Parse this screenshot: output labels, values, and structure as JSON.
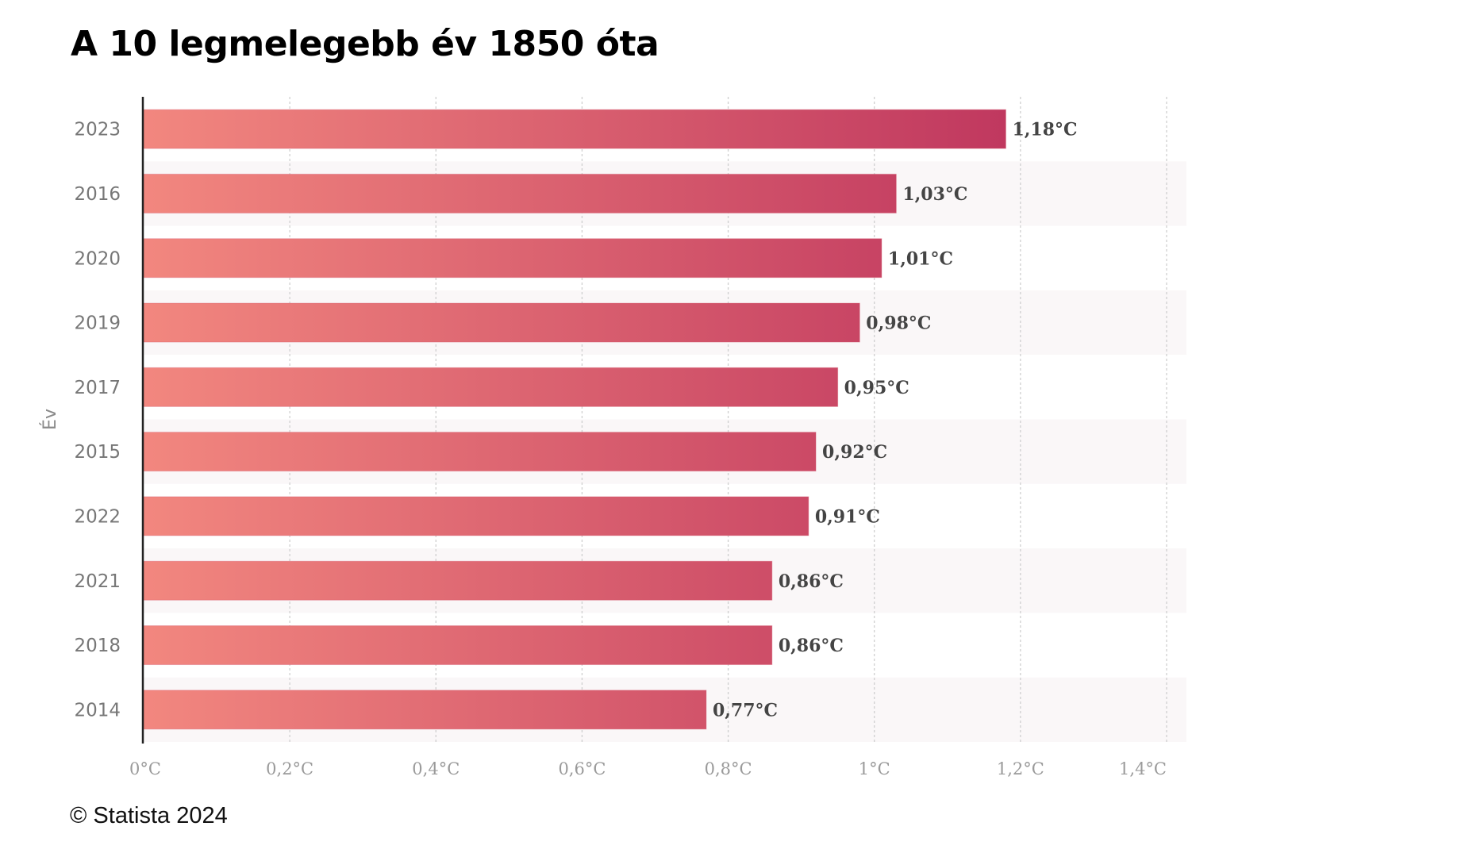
{
  "header": {
    "title": "A 10 legmelegebb év 1850 óta"
  },
  "footer": {
    "copyright": "© Statista 2024"
  },
  "colors": {
    "bar_start": "#f2877f",
    "bar_end": "#c0385f",
    "row_alt": "#faf7f8",
    "grid": "#cfcfcf",
    "axis": "#222222"
  },
  "chart_data": {
    "type": "bar",
    "orientation": "horizontal",
    "title": "A 10 legmelegebb év 1850 óta",
    "xlabel": "",
    "ylabel": "Év",
    "categories": [
      "2023",
      "2016",
      "2020",
      "2019",
      "2017",
      "2015",
      "2022",
      "2021",
      "2018",
      "2014"
    ],
    "values": [
      1.18,
      1.03,
      1.01,
      0.98,
      0.95,
      0.92,
      0.91,
      0.86,
      0.86,
      0.77
    ],
    "value_labels": [
      "1,18°C",
      "1,03°C",
      "1,01°C",
      "0,98°C",
      "0,95°C",
      "0,92°C",
      "0,91°C",
      "0,86°C",
      "0,86°C",
      "0,77°C"
    ],
    "xlim": [
      0,
      1.4
    ],
    "x_ticks": [
      0,
      0.2,
      0.4,
      0.6,
      0.8,
      1.0,
      1.2,
      1.4
    ],
    "x_tick_labels": [
      "0°C",
      "0,2°C",
      "0,4°C",
      "0,6°C",
      "0,8°C",
      "1°C",
      "1,2°C",
      "1,4°C"
    ],
    "unit": "°C",
    "grid": true,
    "legend": "none",
    "source": "© Statista 2024"
  }
}
